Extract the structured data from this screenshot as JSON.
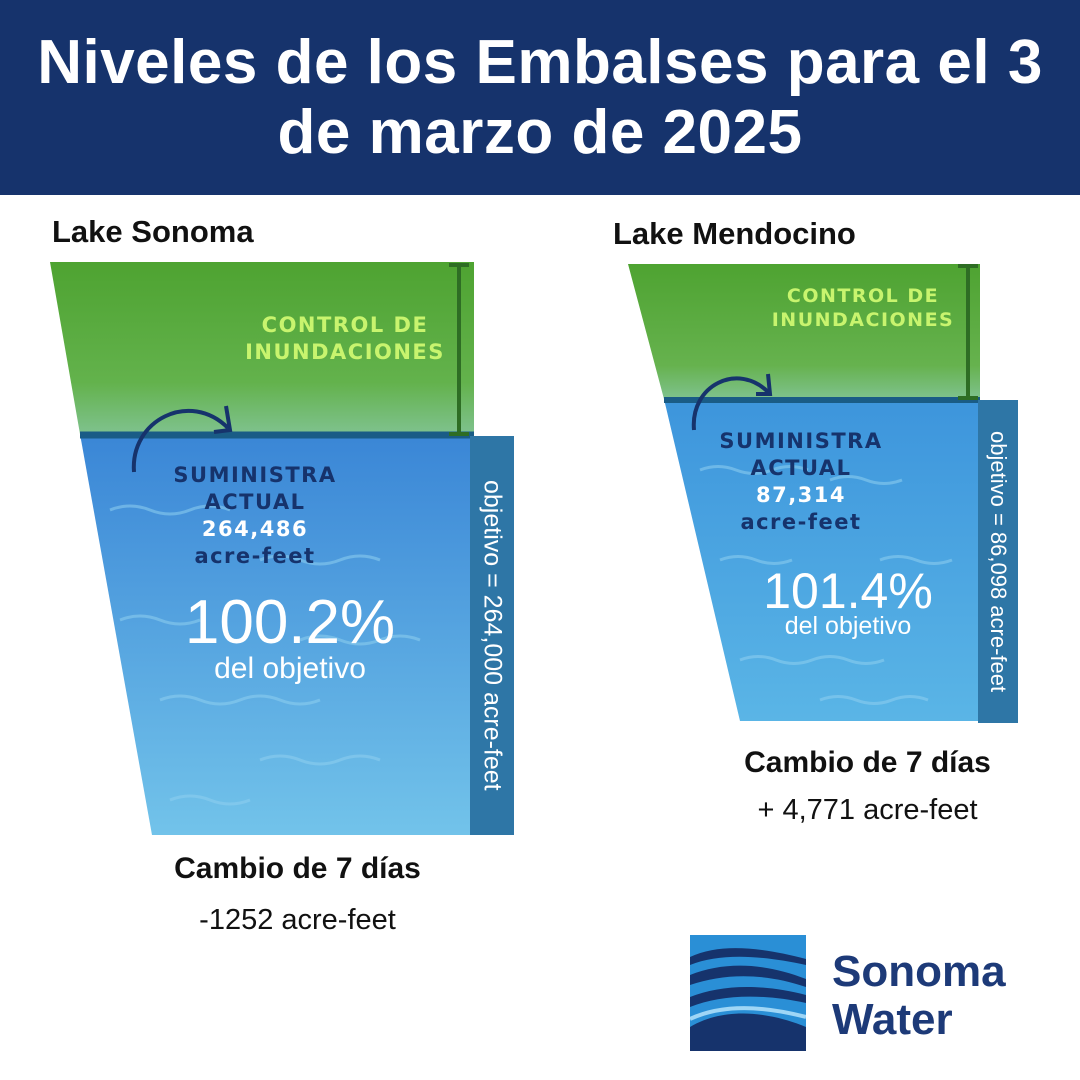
{
  "header": {
    "title": "Niveles de los Embalses para el 3 de marzo de 2025"
  },
  "reservoirs": [
    {
      "name": "Lake Sonoma",
      "flood_label": "CONTROL DE INUNDACIONES",
      "supply_label": "SUMINISTRA ACTUAL",
      "supply_value": "264,486",
      "supply_unit": "acre-feet",
      "percent": "100.2%",
      "percent_label": "del objetivo",
      "target": "objetivo  = 264,000 acre-feet",
      "change_title": "Cambio de 7 días",
      "change_value": "-1252 acre-feet"
    },
    {
      "name": "Lake Mendocino",
      "flood_label": "CONTROL DE INUNDACIONES",
      "supply_label": "SUMINISTRA ACTUAL",
      "supply_value": "87,314",
      "supply_unit": "acre-feet",
      "percent": "101.4%",
      "percent_label": "del objetivo",
      "target": "objetivo = 86,098 acre-feet",
      "change_title": "Cambio de 7 días",
      "change_value": "+ 4,771 acre-feet"
    }
  ],
  "logo": {
    "line1": "Sonoma",
    "line2": "Water",
    "icon": "sonoma-water-waves-icon"
  },
  "colors": {
    "header": "#16336c",
    "flood": "#5aaa3c",
    "water": "#3b8fd8",
    "target_bar": "#2e76a6",
    "brand": "#1d3a78"
  }
}
